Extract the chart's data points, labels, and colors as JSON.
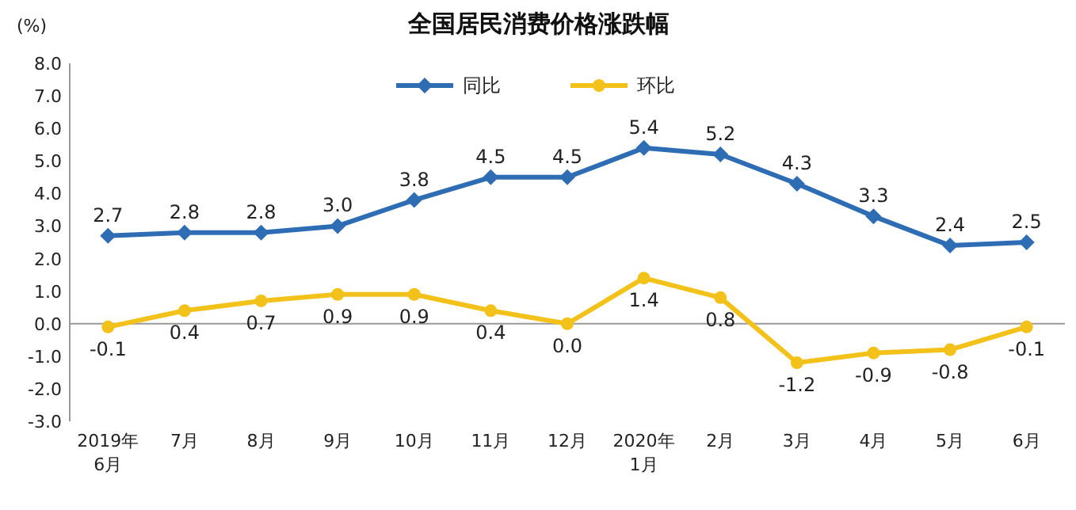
{
  "chart_data": {
    "type": "line",
    "title": "全国居民消费价格涨跌幅",
    "ylabel": "(%)",
    "categories": [
      "2019年\n6月",
      "7月",
      "8月",
      "9月",
      "10月",
      "11月",
      "12月",
      "2020年\n1月",
      "2月",
      "3月",
      "4月",
      "5月",
      "6月"
    ],
    "series": [
      {
        "name": "同比",
        "color": "#2e6db4",
        "marker": "diamond",
        "values": [
          2.7,
          2.8,
          2.8,
          3.0,
          3.8,
          4.5,
          4.5,
          5.4,
          5.2,
          4.3,
          3.3,
          2.4,
          2.5
        ],
        "value_labels": [
          "2.7",
          "2.8",
          "2.8",
          "3.0",
          "3.8",
          "4.5",
          "4.5",
          "5.4",
          "5.2",
          "4.3",
          "3.3",
          "2.4",
          "2.5"
        ]
      },
      {
        "name": "环比",
        "color": "#f2c21b",
        "marker": "circle",
        "values": [
          -0.1,
          0.4,
          0.7,
          0.9,
          0.9,
          0.4,
          0.0,
          1.4,
          0.8,
          -1.2,
          -0.9,
          -0.8,
          -0.1
        ],
        "value_labels": [
          "-0.1",
          "0.4",
          "0.7",
          "0.9",
          "0.9",
          "0.4",
          "0.0",
          "1.4",
          "0.8",
          "-1.2",
          "-0.9",
          "-0.8",
          "-0.1"
        ]
      }
    ],
    "ylim": [
      -3,
      8
    ],
    "yticks": [
      {
        "value": -3,
        "label": "-3.0"
      },
      {
        "value": -2,
        "label": "-2.0"
      },
      {
        "value": -1,
        "label": "-1.0"
      },
      {
        "value": 0,
        "label": "0.0"
      },
      {
        "value": 1,
        "label": "1.0"
      },
      {
        "value": 2,
        "label": "2.0"
      },
      {
        "value": 3,
        "label": "3.0"
      },
      {
        "value": 4,
        "label": "4.0"
      },
      {
        "value": 5,
        "label": "5.0"
      },
      {
        "value": 6,
        "label": "6.0"
      },
      {
        "value": 7,
        "label": "7.0"
      },
      {
        "value": 8,
        "label": "8.0"
      }
    ],
    "legend": "top",
    "line_style": "solid"
  }
}
